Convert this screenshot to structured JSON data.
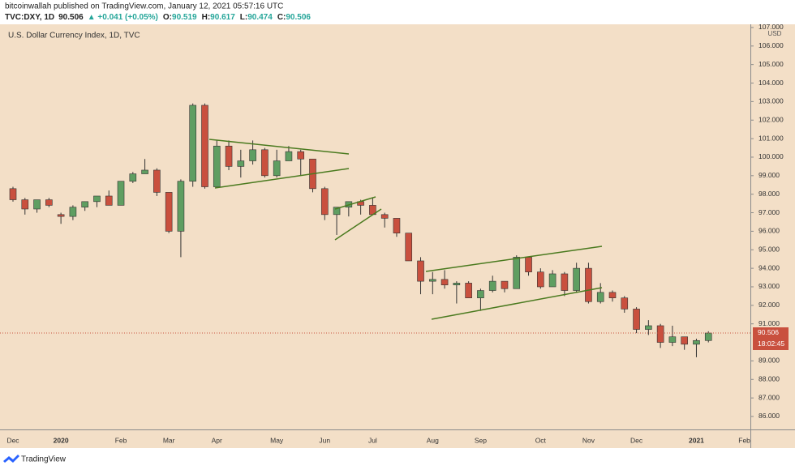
{
  "header": {
    "author_line": "bitcoinwallah published on TradingView.com, January 12, 2021 05:57:16 UTC",
    "symbol": "TVC:DXY, 1D",
    "price": "90.506",
    "change": "▲ +0.041 (+0.05%)",
    "ohlc": [
      {
        "label": "O:",
        "value": "90.519"
      },
      {
        "label": "H:",
        "value": "90.617"
      },
      {
        "label": "L:",
        "value": "90.474"
      },
      {
        "label": "C:",
        "value": "90.506"
      }
    ]
  },
  "chart_data": {
    "type": "candlestick",
    "title": "U.S. Dollar Currency Index, 1D, TVC",
    "currency": "USD",
    "categories": [
      "Dec",
      null,
      null,
      null,
      "2020",
      null,
      null,
      null,
      null,
      "Feb",
      null,
      null,
      null,
      "Mar",
      null,
      null,
      null,
      "Apr",
      null,
      null,
      null,
      null,
      "May",
      null,
      null,
      null,
      "Jun",
      null,
      null,
      null,
      "Jul",
      null,
      null,
      null,
      null,
      "Aug",
      null,
      null,
      null,
      "Sep",
      null,
      null,
      null,
      null,
      "Oct",
      null,
      null,
      null,
      "Nov",
      null,
      null,
      null,
      "Dec",
      null,
      null,
      null,
      null,
      "2021",
      null,
      null,
      null,
      "Feb"
    ],
    "open": [
      98.3,
      97.7,
      97.2,
      97.7,
      96.9,
      96.8,
      97.3,
      97.6,
      97.9,
      97.4,
      98.7,
      99.1,
      99.3,
      98.1,
      96.0,
      98.7,
      102.8,
      98.4,
      100.6,
      99.5,
      99.8,
      100.4,
      99.0,
      99.8,
      100.3,
      99.9,
      98.3,
      96.9,
      97.3,
      97.6,
      97.4,
      96.9,
      96.7,
      95.9,
      94.4,
      93.3,
      93.4,
      93.1,
      93.2,
      92.4,
      92.8,
      93.3,
      92.9,
      94.6,
      93.8,
      93.0,
      93.7,
      92.8,
      94.0,
      92.2,
      92.7,
      92.4,
      91.8,
      90.7,
      90.9,
      90.0,
      90.3,
      89.9,
      90.1,
      null,
      null,
      null
    ],
    "high": [
      98.4,
      97.8,
      97.7,
      97.8,
      97.0,
      97.4,
      97.6,
      97.9,
      98.2,
      98.7,
      99.2,
      99.9,
      99.4,
      98.1,
      98.8,
      102.9,
      102.9,
      100.9,
      100.9,
      100.4,
      100.9,
      100.5,
      100.4,
      100.6,
      100.4,
      99.9,
      98.4,
      97.1,
      97.6,
      97.7,
      97.8,
      97.0,
      96.7,
      95.9,
      94.6,
      93.8,
      93.9,
      93.3,
      93.3,
      92.9,
      93.6,
      93.3,
      94.7,
      94.6,
      94.0,
      93.9,
      93.8,
      94.3,
      94.3,
      93.2,
      92.8,
      92.5,
      91.9,
      91.2,
      91.0,
      90.9,
      90.3,
      90.2,
      90.6,
      null,
      null,
      null
    ],
    "low": [
      97.6,
      96.9,
      97.0,
      97.3,
      96.4,
      96.6,
      97.1,
      97.3,
      97.4,
      97.4,
      98.6,
      99.1,
      97.9,
      95.9,
      94.6,
      98.4,
      98.3,
      98.4,
      99.3,
      98.9,
      99.6,
      98.9,
      98.9,
      99.8,
      99.0,
      98.1,
      96.6,
      95.8,
      96.8,
      96.9,
      96.9,
      96.2,
      95.7,
      94.4,
      92.6,
      92.6,
      92.9,
      92.1,
      92.4,
      91.7,
      92.7,
      92.7,
      92.9,
      93.6,
      92.9,
      93.0,
      92.5,
      92.7,
      92.1,
      92.1,
      92.2,
      91.6,
      90.5,
      90.4,
      89.7,
      89.8,
      89.6,
      89.2,
      90.0,
      null,
      null,
      null
    ],
    "close": [
      97.7,
      97.2,
      97.7,
      97.4,
      96.8,
      97.3,
      97.6,
      97.9,
      97.4,
      98.7,
      99.1,
      99.3,
      98.1,
      96.0,
      98.7,
      102.8,
      98.4,
      100.6,
      99.5,
      99.8,
      100.4,
      99.0,
      99.8,
      100.3,
      99.9,
      98.3,
      96.9,
      97.3,
      97.6,
      97.4,
      96.9,
      96.7,
      95.9,
      94.4,
      93.3,
      93.4,
      93.1,
      93.2,
      92.4,
      92.8,
      93.3,
      92.9,
      94.6,
      93.8,
      93.0,
      93.7,
      92.8,
      94.0,
      92.2,
      92.7,
      92.4,
      91.8,
      90.7,
      90.9,
      90.0,
      90.3,
      89.9,
      90.1,
      90.506,
      null,
      null,
      null
    ],
    "up_color": "#5f9e61",
    "down_color": "#c9503e",
    "line_color": "#4a7a1f",
    "last_price": 90.506,
    "timer": "18:02:45",
    "ylim": [
      85.3,
      107.26
    ],
    "yticks": [
      {
        "value": 86,
        "label": "86.000"
      },
      {
        "value": 87,
        "label": "87.000"
      },
      {
        "value": 88,
        "label": "88.000"
      },
      {
        "value": 89,
        "label": "89.000"
      },
      {
        "value": 91,
        "label": "91.000"
      },
      {
        "value": 92,
        "label": "92.000"
      },
      {
        "value": 93,
        "label": "93.000"
      },
      {
        "value": 94,
        "label": "94.000"
      },
      {
        "value": 95,
        "label": "95.000"
      },
      {
        "value": 96,
        "label": "96.000"
      },
      {
        "value": 97,
        "label": "97.000"
      },
      {
        "value": 98,
        "label": "98.000"
      },
      {
        "value": 99,
        "label": "99.000"
      },
      {
        "value": 100,
        "label": "100.000"
      },
      {
        "value": 101,
        "label": "101.000"
      },
      {
        "value": 102,
        "label": "102.000"
      },
      {
        "value": 103,
        "label": "103.000"
      },
      {
        "value": 104,
        "label": "104.000"
      },
      {
        "value": 105,
        "label": "105.000"
      },
      {
        "value": 106,
        "label": "106.000"
      },
      {
        "value": 107,
        "label": "107.000"
      }
    ]
  },
  "footer": {
    "brand": "TradingView"
  }
}
